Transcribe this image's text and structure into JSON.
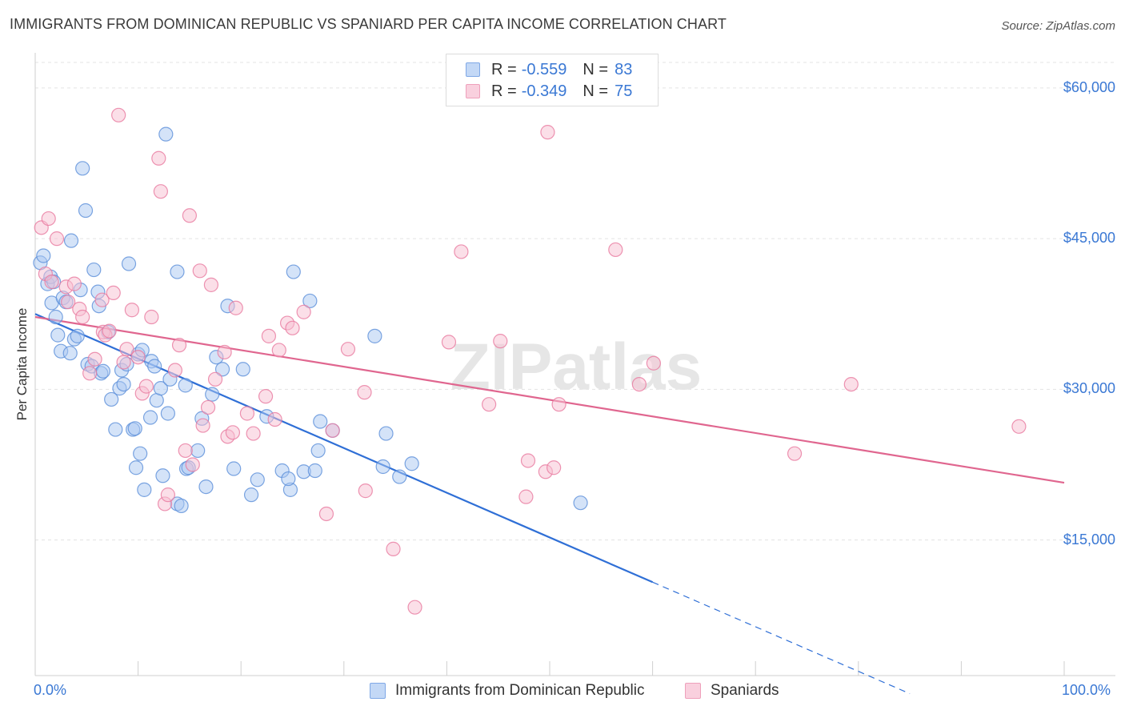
{
  "title": "IMMIGRANTS FROM DOMINICAN REPUBLIC VS SPANIARD PER CAPITA INCOME CORRELATION CHART",
  "source": "Source: ZipAtlas.com",
  "watermark": "ZIPatlas",
  "legend": {
    "rows": [
      {
        "r_label": "R =",
        "r_value": "-0.559",
        "n_label": "N =",
        "n_value": "83",
        "color": "#8ab4f0"
      },
      {
        "r_label": "R =",
        "r_value": "-0.349",
        "n_label": "N =",
        "n_value": "75",
        "color": "#f4a6c0"
      }
    ]
  },
  "bottom_legend": [
    {
      "label": "Immigrants from Dominican Republic",
      "color": "#8ab4f0"
    },
    {
      "label": "Spaniards",
      "color": "#f4a6c0"
    }
  ],
  "chart_data": {
    "type": "scatter",
    "title": "IMMIGRANTS FROM DOMINICAN REPUBLIC VS SPANIARD PER CAPITA INCOME CORRELATION CHART",
    "xlabel": "",
    "ylabel": "Per Capita Income",
    "xlim": [
      0,
      100
    ],
    "ylim": [
      1500,
      63500
    ],
    "x_tick_labels": [
      "0.0%",
      "100.0%"
    ],
    "y_ticks": [
      15000,
      30000,
      45000,
      60000
    ],
    "y_tick_labels": [
      "$15,000",
      "$30,000",
      "$45,000",
      "$60,000"
    ],
    "grid": true,
    "legend_position": "top-center",
    "series": [
      {
        "name": "Immigrants from Dominican Republic",
        "color": "#5b8fd9",
        "fill": "#aac8f2",
        "points": [
          [
            0.5,
            42600
          ],
          [
            0.8,
            43300
          ],
          [
            1.2,
            40500
          ],
          [
            1.5,
            41200
          ],
          [
            1.6,
            38600
          ],
          [
            1.8,
            40700
          ],
          [
            2.0,
            37200
          ],
          [
            2.2,
            35400
          ],
          [
            2.5,
            33800
          ],
          [
            2.7,
            39100
          ],
          [
            3.0,
            38700
          ],
          [
            3.4,
            33600
          ],
          [
            3.5,
            44800
          ],
          [
            3.8,
            35000
          ],
          [
            4.1,
            35300
          ],
          [
            4.4,
            39900
          ],
          [
            4.6,
            52000
          ],
          [
            4.9,
            47800
          ],
          [
            5.1,
            32500
          ],
          [
            5.5,
            32300
          ],
          [
            5.7,
            41900
          ],
          [
            6.1,
            39700
          ],
          [
            6.2,
            38300
          ],
          [
            6.4,
            31600
          ],
          [
            6.6,
            31800
          ],
          [
            7.1,
            35700
          ],
          [
            7.4,
            29000
          ],
          [
            7.8,
            26000
          ],
          [
            8.2,
            30100
          ],
          [
            8.4,
            31900
          ],
          [
            8.6,
            30500
          ],
          [
            8.9,
            32500
          ],
          [
            9.1,
            42500
          ],
          [
            9.5,
            26000
          ],
          [
            9.8,
            22200
          ],
          [
            10.0,
            33500
          ],
          [
            10.2,
            23600
          ],
          [
            10.4,
            33900
          ],
          [
            10.6,
            20000
          ],
          [
            11.2,
            27200
          ],
          [
            11.3,
            32800
          ],
          [
            11.6,
            32300
          ],
          [
            11.8,
            28900
          ],
          [
            12.2,
            30100
          ],
          [
            12.4,
            21400
          ],
          [
            12.7,
            55400
          ],
          [
            12.9,
            27600
          ],
          [
            13.1,
            31000
          ],
          [
            13.8,
            41700
          ],
          [
            13.8,
            18600
          ],
          [
            14.2,
            18400
          ],
          [
            14.6,
            30400
          ],
          [
            14.7,
            22100
          ],
          [
            15.8,
            23900
          ],
          [
            16.2,
            27100
          ],
          [
            16.6,
            20300
          ],
          [
            17.2,
            29500
          ],
          [
            17.6,
            33200
          ],
          [
            18.2,
            32000
          ],
          [
            18.7,
            38300
          ],
          [
            19.3,
            22100
          ],
          [
            20.2,
            32000
          ],
          [
            21.0,
            19500
          ],
          [
            21.6,
            21000
          ],
          [
            22.5,
            27300
          ],
          [
            24.0,
            21900
          ],
          [
            24.8,
            20000
          ],
          [
            25.1,
            41700
          ],
          [
            26.1,
            21800
          ],
          [
            26.7,
            38800
          ],
          [
            27.2,
            21900
          ],
          [
            27.5,
            23900
          ],
          [
            27.7,
            26800
          ],
          [
            28.9,
            25900
          ],
          [
            33.0,
            35300
          ],
          [
            33.8,
            22300
          ],
          [
            34.1,
            25600
          ],
          [
            35.4,
            21300
          ],
          [
            36.6,
            22600
          ],
          [
            53.0,
            18700
          ],
          [
            24.6,
            21100
          ],
          [
            14.9,
            22200
          ],
          [
            9.7,
            26100
          ]
        ]
      },
      {
        "name": "Spaniards",
        "color": "#e8799f",
        "fill": "#f7c0d2",
        "points": [
          [
            0.6,
            46100
          ],
          [
            1.0,
            41500
          ],
          [
            1.3,
            47000
          ],
          [
            1.6,
            40700
          ],
          [
            2.1,
            45000
          ],
          [
            3.0,
            40200
          ],
          [
            3.2,
            38700
          ],
          [
            3.8,
            40500
          ],
          [
            4.3,
            38000
          ],
          [
            4.6,
            37200
          ],
          [
            5.3,
            31600
          ],
          [
            5.8,
            33000
          ],
          [
            6.5,
            38900
          ],
          [
            6.6,
            35700
          ],
          [
            6.8,
            35400
          ],
          [
            7.2,
            35800
          ],
          [
            7.6,
            39600
          ],
          [
            8.1,
            57300
          ],
          [
            8.6,
            32700
          ],
          [
            8.9,
            34000
          ],
          [
            9.4,
            37900
          ],
          [
            10.0,
            33200
          ],
          [
            10.4,
            29600
          ],
          [
            10.8,
            30300
          ],
          [
            11.3,
            37200
          ],
          [
            12.0,
            53000
          ],
          [
            12.2,
            49700
          ],
          [
            12.6,
            18600
          ],
          [
            12.9,
            19500
          ],
          [
            13.6,
            31900
          ],
          [
            14.0,
            34400
          ],
          [
            14.6,
            23900
          ],
          [
            15.0,
            47300
          ],
          [
            15.3,
            22500
          ],
          [
            16.0,
            41800
          ],
          [
            16.3,
            26400
          ],
          [
            16.8,
            28200
          ],
          [
            17.1,
            40400
          ],
          [
            17.5,
            31000
          ],
          [
            18.4,
            33700
          ],
          [
            18.7,
            25300
          ],
          [
            19.2,
            25700
          ],
          [
            19.5,
            38100
          ],
          [
            20.6,
            27600
          ],
          [
            21.2,
            25600
          ],
          [
            22.4,
            29300
          ],
          [
            22.7,
            35300
          ],
          [
            23.3,
            27000
          ],
          [
            23.7,
            33900
          ],
          [
            24.5,
            36600
          ],
          [
            25.0,
            36100
          ],
          [
            26.1,
            37700
          ],
          [
            28.3,
            17600
          ],
          [
            28.9,
            25900
          ],
          [
            30.4,
            34000
          ],
          [
            32.0,
            29700
          ],
          [
            32.1,
            19900
          ],
          [
            34.8,
            14100
          ],
          [
            36.9,
            8300
          ],
          [
            40.2,
            34700
          ],
          [
            41.4,
            43700
          ],
          [
            44.1,
            28500
          ],
          [
            45.2,
            34800
          ],
          [
            47.7,
            19300
          ],
          [
            47.9,
            22900
          ],
          [
            49.6,
            21800
          ],
          [
            49.8,
            55600
          ],
          [
            50.4,
            22200
          ],
          [
            50.9,
            28500
          ],
          [
            56.4,
            43900
          ],
          [
            58.7,
            30500
          ],
          [
            60.1,
            32600
          ],
          [
            73.8,
            23600
          ],
          [
            79.3,
            30500
          ],
          [
            95.6,
            26300
          ]
        ]
      }
    ],
    "trendlines": [
      {
        "series": "Immigrants from Dominican Republic",
        "solid": [
          [
            0,
            37500
          ],
          [
            60,
            10800
          ]
        ],
        "dashed": [
          [
            60,
            10800
          ],
          [
            85,
            -300
          ]
        ]
      },
      {
        "series": "Spaniards",
        "solid": [
          [
            0,
            37200
          ],
          [
            100,
            20700
          ]
        ]
      }
    ]
  }
}
